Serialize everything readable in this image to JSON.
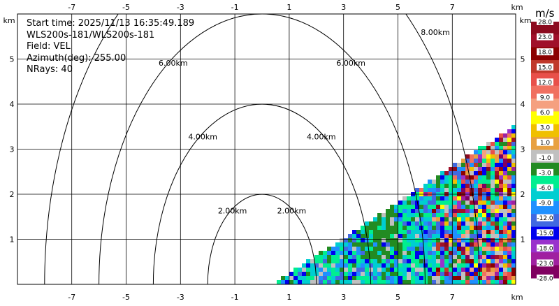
{
  "info": {
    "start_time": "Start time: 2025/11/13 16:35:49.189",
    "device": "WLS200s-181/WLS200s-181",
    "field": "Field: VEL",
    "azimuth": "Azimuth(deg): 255.00",
    "nrays": "NRays: 40"
  },
  "colorbar": {
    "unit": "m/s",
    "labels": [
      "28.0",
      "23.0",
      "18.0",
      "15.0",
      "12.0",
      "9.0",
      "6.0",
      "3.0",
      "1.0",
      "-1.0",
      "-3.0",
      "-6.0",
      "-9.0",
      "-12.0",
      "-15.0",
      "-18.0",
      "-23.0",
      "-28.0"
    ],
    "colors": [
      "#8b0a1e",
      "#a0102a",
      "#8b0000",
      "#c0392b",
      "#e8504a",
      "#f07060",
      "#f5a080",
      "#ffff00",
      "#f0c000",
      "#e8a040",
      "#c0c0c0",
      "#228b22",
      "#00ee90",
      "#00ced1",
      "#1e90ff",
      "#4169e1",
      "#0000ee",
      "#9932cc",
      "#a020a0",
      "#800060"
    ]
  },
  "chart_data": {
    "type": "heatmap",
    "title": "",
    "xlabel": "km",
    "ylabel": "km",
    "xlim": [
      -9,
      9
    ],
    "ylim": [
      0,
      6
    ],
    "xticks": [
      "-7",
      "-5",
      "-3",
      "-1",
      "1",
      "3",
      "5",
      "7"
    ],
    "yticks": [
      "1",
      "2",
      "3",
      "4",
      "5"
    ],
    "range_rings": [
      {
        "label": "2.00km",
        "radius": 2
      },
      {
        "label": "4.00km",
        "radius": 4
      },
      {
        "label": "6.00km",
        "radius": 6
      },
      {
        "label": "8.00km",
        "radius": 8
      }
    ],
    "sector": {
      "range_max_km": 9,
      "elevation_min_deg": 0,
      "elevation_max_deg": 20
    }
  }
}
